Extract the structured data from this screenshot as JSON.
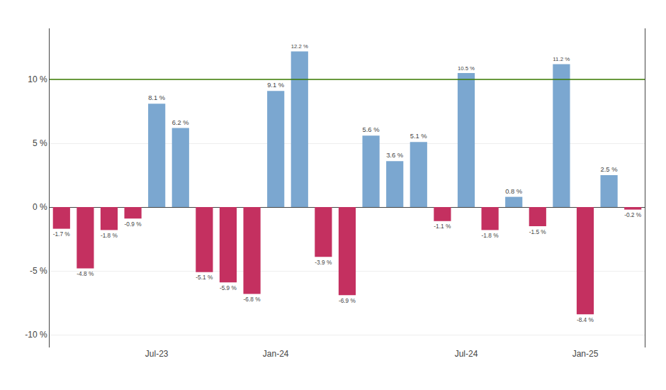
{
  "chart_data": {
    "type": "bar",
    "categories": [
      null,
      null,
      null,
      null,
      "Jul-23",
      null,
      null,
      null,
      null,
      "Jan-24",
      null,
      null,
      null,
      null,
      null,
      null,
      null,
      "Jul-24",
      null,
      null,
      null,
      null,
      "Jan-25",
      null,
      null
    ],
    "values": [
      -1.7,
      -4.8,
      -1.8,
      -0.9,
      8.1,
      6.2,
      -5.1,
      -5.9,
      -6.8,
      9.1,
      12.2,
      -3.9,
      -6.9,
      5.6,
      3.6,
      5.1,
      -1.1,
      10.5,
      -1.8,
      0.8,
      -1.5,
      11.2,
      -8.4,
      2.5,
      -0.2
    ],
    "value_labels": [
      "-1.7 %",
      "-4.8 %",
      "-1.8 %",
      "-0.9 %",
      "8.1 %",
      "6.2 %",
      "-5.1 %",
      "-5.9 %",
      "-6.8 %",
      "9.1 %",
      "12.2 %",
      "-3.9 %",
      "-6.9 %",
      "5.6 %",
      "3.6 %",
      "5.1 %",
      "-1.1 %",
      "10.5 %",
      "-1.8 %",
      "0.8 %",
      "-1.5 %",
      "11.2 %",
      "-8.4 %",
      "2.5 %",
      "-0.2 %"
    ],
    "colors": [
      "#C43060",
      "#C43060",
      "#C43060",
      "#C43060",
      "#7BA7D0",
      "#7BA7D0",
      "#C43060",
      "#C43060",
      "#C43060",
      "#7BA7D0",
      "#7BA7D0",
      "#C43060",
      "#C43060",
      "#7BA7D0",
      "#7BA7D0",
      "#7BA7D0",
      "#C43060",
      "#7BA7D0",
      "#C43060",
      "#7BA7D0",
      "#C43060",
      "#7BA7D0",
      "#C43060",
      "#7BA7D0",
      "#C43060"
    ],
    "data_labels": true,
    "ylim": [
      -11,
      14
    ],
    "yticks": [
      {
        "value": -10,
        "label": "-10 %"
      },
      {
        "value": -5,
        "label": "-5 %"
      },
      {
        "value": 0,
        "label": "0 %"
      },
      {
        "value": 5,
        "label": "5 %"
      },
      {
        "value": 10,
        "label": "10 %"
      }
    ],
    "hlines": [
      {
        "value": 10,
        "color": "#3A7A00"
      }
    ],
    "grid": true
  }
}
